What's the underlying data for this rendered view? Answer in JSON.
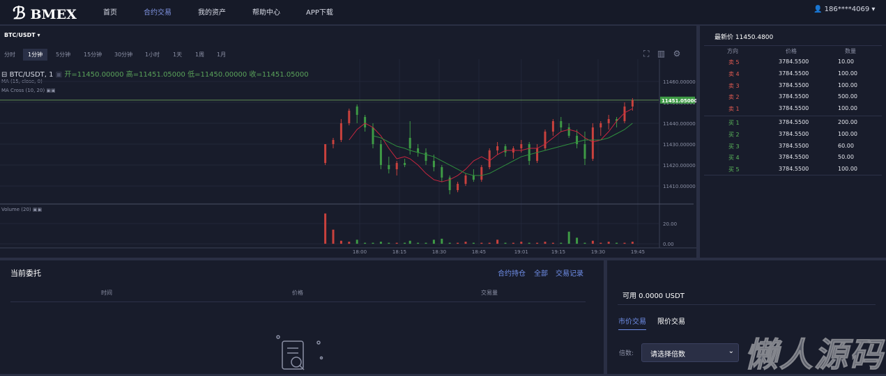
{
  "nav": {
    "logo": "BMEX",
    "links": [
      "首页",
      "合约交易",
      "我的资产",
      "帮助中心",
      "APP下载"
    ],
    "user": "186****4069"
  },
  "market": {
    "symbol": "BTC/USDT",
    "intervals": [
      "分时",
      "1分钟",
      "5分钟",
      "15分钟",
      "30分钟",
      "1小时",
      "1天",
      "1周",
      "1月"
    ]
  },
  "chart": {
    "type": "candlestick",
    "legend": "BTC/USDT, 1",
    "ohlc_labels": [
      "开=11450.00000",
      "高=11451.05000",
      "低=11450.00000",
      "收=11451.05000"
    ],
    "studies": [
      "MA (15, close, 0)",
      "MA Cross (10, 20)"
    ],
    "volume_label": "Volume (20)",
    "up_color": "#c8413d",
    "down_color": "#3e9a45",
    "xlim": [
      -135.8,
      112.9
    ],
    "ylim": [
      11401.7,
      11467.3
    ],
    "yticks": [
      {
        "value": 11460,
        "label": "11460.00000"
      },
      {
        "value": 11450,
        "label": "11450.00000"
      },
      {
        "value": 11440,
        "label": "11440.00000"
      },
      {
        "value": 11430,
        "label": "11430.00000"
      },
      {
        "value": 11420,
        "label": "11420.00000"
      },
      {
        "value": 11410,
        "label": "11410.00000"
      }
    ],
    "xticks": [
      {
        "value": 0,
        "label": "18:00"
      },
      {
        "value": 15,
        "label": "18:15"
      },
      {
        "value": 30,
        "label": "18:30"
      },
      {
        "value": 45,
        "label": "18:45"
      },
      {
        "value": 61,
        "label": "19:01"
      },
      {
        "value": 75,
        "label": "19:15"
      },
      {
        "value": 90,
        "label": "19:30"
      },
      {
        "value": 105,
        "label": "19:45"
      }
    ],
    "last_price": {
      "value": 11451.05,
      "label": "11451.05000"
    },
    "candles": {
      "x": [
        -13,
        -10,
        -7,
        -4,
        -1,
        2,
        5,
        8,
        11,
        14,
        17,
        19,
        22,
        25,
        28,
        31,
        34,
        37,
        40,
        43,
        46,
        49,
        52,
        55,
        58,
        61,
        64,
        67,
        70,
        73,
        76,
        79,
        82,
        85,
        88,
        91,
        94,
        97,
        100,
        103
      ],
      "open": [
        11421,
        11430,
        11432,
        11440,
        11448,
        11443,
        11438,
        11430,
        11420,
        11418,
        11421,
        11433,
        11428,
        11426,
        11422,
        11419,
        11414,
        11408,
        11411,
        11415,
        11413,
        11419,
        11427,
        11429,
        11426,
        11428,
        11430,
        11422,
        11428,
        11436,
        11441,
        11438,
        11434,
        11430,
        11423,
        11438,
        11440,
        11442,
        11441,
        11448
      ],
      "high": [
        11430,
        11433,
        11442,
        11447,
        11449,
        11444,
        11440,
        11432,
        11424,
        11422,
        11423,
        11441,
        11430,
        11428,
        11425,
        11420,
        11415,
        11412,
        11416,
        11418,
        11420,
        11428,
        11431,
        11430,
        11429,
        11432,
        11431,
        11430,
        11437,
        11442,
        11443,
        11440,
        11437,
        11436,
        11440,
        11441,
        11444,
        11443,
        11450,
        11452
      ],
      "low": [
        11420,
        11428,
        11431,
        11439,
        11440,
        11436,
        11428,
        11418,
        11416,
        11415,
        11419,
        11425,
        11424,
        11420,
        11417,
        11412,
        11406,
        11407,
        11410,
        11412,
        11412,
        11418,
        11425,
        11424,
        11423,
        11426,
        11420,
        11421,
        11427,
        11434,
        11436,
        11433,
        11428,
        11420,
        11422,
        11434,
        11437,
        11438,
        11440,
        11446
      ],
      "close": [
        11430,
        11432,
        11440,
        11446,
        11444,
        11438,
        11430,
        11420,
        11418,
        11421,
        11420,
        11428,
        11426,
        11422,
        11419,
        11414,
        11408,
        11411,
        11415,
        11413,
        11419,
        11427,
        11429,
        11426,
        11428,
        11430,
        11422,
        11428,
        11436,
        11441,
        11438,
        11434,
        11430,
        11423,
        11438,
        11440,
        11442,
        11441,
        11448,
        11451
      ]
    },
    "volume": {
      "ylim": [
        -2,
        38
      ],
      "yticks": [
        {
          "value": 20,
          "label": "20.00"
        },
        {
          "value": 0,
          "label": "0.00"
        }
      ],
      "values": [
        30,
        14,
        3,
        2,
        4,
        1,
        1,
        2,
        1,
        1,
        1,
        3,
        1,
        1,
        4,
        5,
        1,
        1,
        2,
        1,
        1,
        1,
        4,
        1,
        1,
        2,
        1,
        1,
        2,
        1,
        1,
        12,
        6,
        1,
        3,
        1,
        2,
        1,
        1,
        2
      ]
    },
    "ma_series": [
      {
        "color": "#c8263f",
        "values": [
          null,
          null,
          null,
          11432,
          11437,
          11440,
          11438,
          11434,
          11428,
          11423,
          11424,
          11423,
          11420,
          11416,
          11413,
          11412,
          11413,
          11415,
          11418,
          11422,
          11424,
          11422,
          11425,
          11427,
          11427,
          11427,
          11428,
          11428,
          11430,
          11433,
          11436,
          11437,
          11436,
          11433,
          11431,
          11432,
          11436,
          11441,
          11445,
          11447
        ]
      },
      {
        "color": "#2f8f3e",
        "values": [
          null,
          null,
          null,
          null,
          null,
          null,
          11434,
          11433,
          11431,
          11429,
          11428,
          11427,
          11426,
          11425,
          11424,
          11422,
          11420,
          11418,
          11416,
          11415,
          11415,
          11416,
          11418,
          11420,
          11422,
          11424,
          11425,
          11426,
          11427,
          11428,
          11429,
          11430,
          11431,
          11432,
          11432,
          11432,
          11433,
          11435,
          11437,
          11440
        ]
      }
    ]
  },
  "orderbook": {
    "title": "最新价 11450.4800",
    "headers": [
      "方向",
      "价格",
      "数量"
    ],
    "asks": [
      [
        "卖 5",
        "3784.5500",
        "10.00"
      ],
      [
        "卖 4",
        "3784.5500",
        "100.00"
      ],
      [
        "卖 3",
        "3784.5500",
        "100.00"
      ],
      [
        "卖 2",
        "3784.5500",
        "500.00"
      ],
      [
        "卖 1",
        "3784.5500",
        "100.00"
      ]
    ],
    "bids": [
      [
        "买 1",
        "3784.5500",
        "200.00"
      ],
      [
        "买 2",
        "3784.5500",
        "100.00"
      ],
      [
        "买 3",
        "3784.5500",
        "60.00"
      ],
      [
        "买 4",
        "3784.5500",
        "50.00"
      ],
      [
        "买 5",
        "3784.5500",
        "100.00"
      ]
    ]
  },
  "orders": {
    "title": "当前委托",
    "links": [
      "合约持仓",
      "全部",
      "交易记录"
    ],
    "headers": [
      "时间",
      "价格",
      "交易量"
    ]
  },
  "trade": {
    "available": "可用 0.0000 USDT",
    "tabs": [
      "市价交易",
      "限价交易"
    ],
    "leverage_label": "倍数:",
    "leverage_select": "请选择倍数"
  },
  "watermark": "懒人源码"
}
